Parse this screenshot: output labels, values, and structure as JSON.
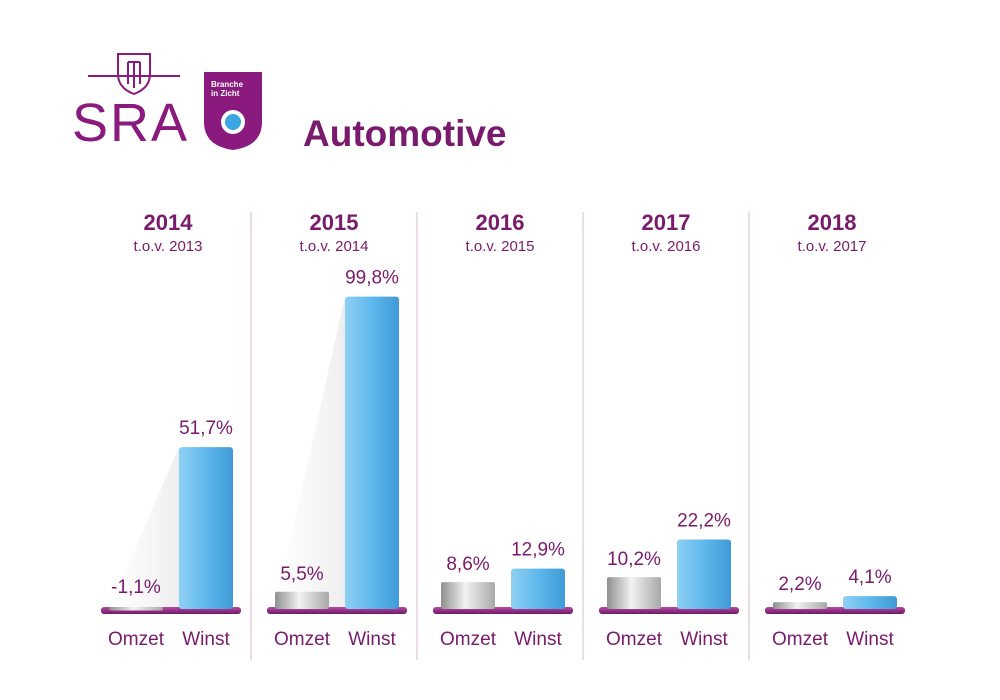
{
  "header": {
    "logo_text": "SRA",
    "badge_line1": "Branche",
    "badge_line2": "in Zicht",
    "title": "Automotive"
  },
  "colors": {
    "accent": "#7a1a6e",
    "winst_bar": "#5fb8ec",
    "omzet_bar": "#cfcfcf",
    "divider": "#d9b8d6"
  },
  "chart_data": {
    "type": "bar",
    "title": "Automotive",
    "xlabel": "",
    "ylabel": "",
    "ylim": [
      -2,
      100
    ],
    "series_labels": [
      "Omzet",
      "Winst"
    ],
    "groups": [
      {
        "year": "2014",
        "compare": "t.o.v. 2013",
        "omzet": -1.1,
        "winst": 51.7,
        "omzet_label": "-1,1%",
        "winst_label": "51,7%"
      },
      {
        "year": "2015",
        "compare": "t.o.v. 2014",
        "omzet": 5.5,
        "winst": 99.8,
        "omzet_label": "5,5%",
        "winst_label": "99,8%"
      },
      {
        "year": "2016",
        "compare": "t.o.v. 2015",
        "omzet": 8.6,
        "winst": 12.9,
        "omzet_label": "8,6%",
        "winst_label": "12,9%"
      },
      {
        "year": "2017",
        "compare": "t.o.v. 2016",
        "omzet": 10.2,
        "winst": 22.2,
        "omzet_label": "10,2%",
        "winst_label": "22,2%"
      },
      {
        "year": "2018",
        "compare": "t.o.v. 2017",
        "omzet": 2.2,
        "winst": 4.1,
        "omzet_label": "2,2%",
        "winst_label": "4,1%"
      }
    ]
  }
}
